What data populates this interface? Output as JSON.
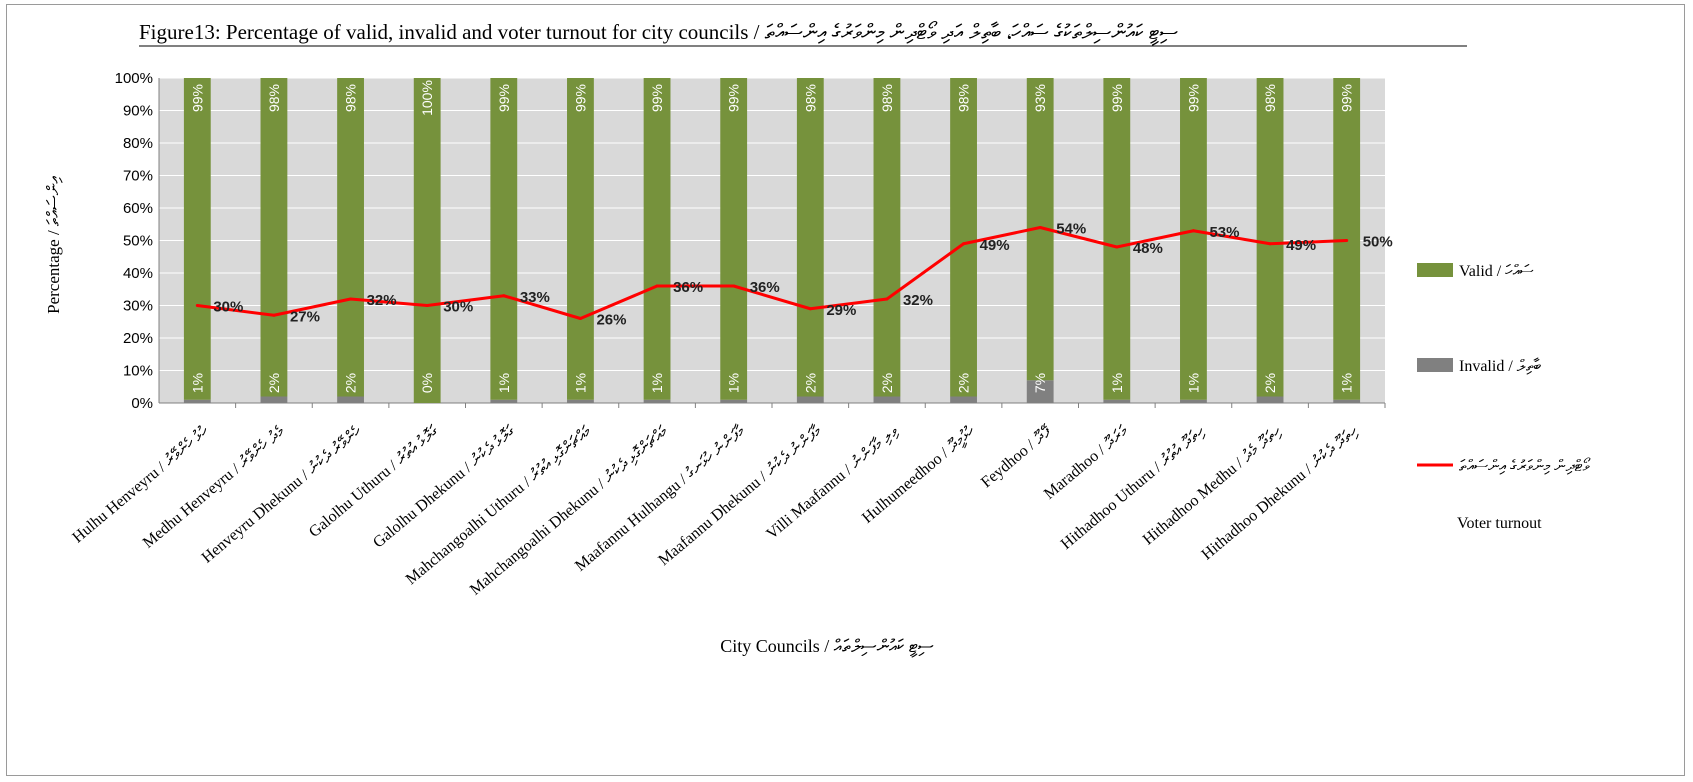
{
  "chart_data": {
    "type": "bar",
    "stacked": true,
    "title": "Figure13: Percentage of valid, invalid and voter turnout for city councils / ސިޓީ ކައުންސިލްތަކުގެ ސައްހަ، ބާތިލް އަދި ވޯޓްދިން މިންވަރުގެ އިންސައްތަ",
    "xlabel": "City Councils / ސިޓީ ކައުންސިލްތައް",
    "ylabel": "Percentage / އިންސައްތަ",
    "ylim": [
      0,
      100
    ],
    "yticks": [
      "0%",
      "10%",
      "20%",
      "30%",
      "40%",
      "50%",
      "60%",
      "70%",
      "80%",
      "90%",
      "100%"
    ],
    "grid": true,
    "legend_position": "right",
    "categories": [
      "Hulhu Henveyru / ހުޅު ހެންވޭރު",
      "Medhu Henveyru / މެދު ހެންވޭރު",
      "Henveyru Dhekunu / ހެންވޭރު ދެކުނު",
      "Galolhu Uthuru / ގަލޮޅު އުތުރު",
      "Galolhu Dhekunu / ގަލޮޅު ދެކުނު",
      "Mahchangoalhi Uthuru / މައްޗަންގޮޅި އުތުރު",
      "Mahchangoalhi Dhekunu / މައްޗަންގޮޅި ދެކުނު",
      "Maafannu Hulhangu / މާފަންނު ހުޅަނގު",
      "Maafannu Dhekunu / މާފަންނު ދެކުނު",
      "Villi Maafannu / ވިލި މާފަންނު",
      "Hulhumeedhoo / ހުޅުމީދޫ",
      "Feydhoo / ފޭދޫ",
      "Maradhoo / މަރަދޫ",
      "Hithadhoo Uthuru / ހިތަދޫ އުތުރު",
      "Hithadhoo Medhu / ހިތަދޫ މެދު",
      "Hithadhoo Dhekunu / ހިތަދޫ ދެކުނު"
    ],
    "series": [
      {
        "name": "Valid / ސައްހަ",
        "type": "bar",
        "color": "#76923c",
        "values": [
          99,
          98,
          98,
          100,
          99,
          99,
          99,
          99,
          98,
          98,
          98,
          93,
          99,
          99,
          98,
          99
        ],
        "labels": [
          "99%",
          "98%",
          "98%",
          "100%",
          "99%",
          "99%",
          "99%",
          "99%",
          "98%",
          "98%",
          "98%",
          "93%",
          "99%",
          "99%",
          "98%",
          "99%"
        ]
      },
      {
        "name": "Invalid / ބާތިލް",
        "type": "bar",
        "color": "#808080",
        "values": [
          1,
          2,
          2,
          0,
          1,
          1,
          1,
          1,
          2,
          2,
          2,
          7,
          1,
          1,
          2,
          1
        ],
        "labels": [
          "1%",
          "2%",
          "2%",
          "0%",
          "1%",
          "1%",
          "1%",
          "1%",
          "2%",
          "2%",
          "2%",
          "7%",
          "1%",
          "1%",
          "2%",
          "1%"
        ]
      },
      {
        "name": "ވޯޓްދިން މިންވަރުގެ އިންސައްތަ",
        "name_en": "Voter turnout",
        "type": "line",
        "color": "#ff0000",
        "values": [
          30,
          27,
          32,
          30,
          33,
          26,
          36,
          36,
          29,
          32,
          49,
          54,
          48,
          53,
          49,
          50
        ],
        "labels": [
          "30%",
          "27%",
          "32%",
          "30%",
          "33%",
          "26%",
          "36%",
          "36%",
          "29%",
          "32%",
          "49%",
          "54%",
          "48%",
          "53%",
          "49%",
          "50%"
        ]
      }
    ]
  },
  "colors": {
    "plot_background": "#d9d9d9",
    "gridline": "#ffffff",
    "axis": "#808080"
  }
}
